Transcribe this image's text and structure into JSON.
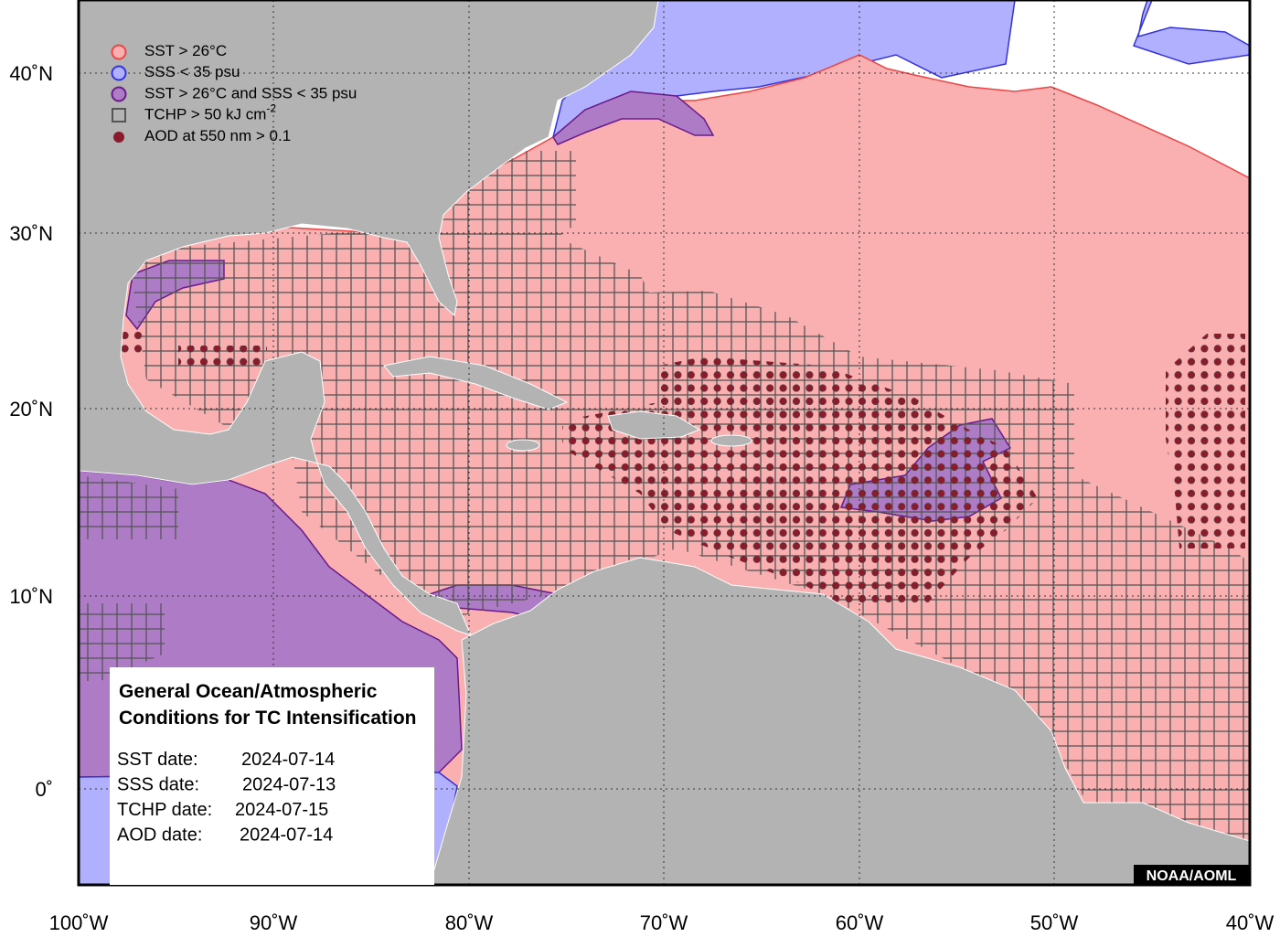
{
  "map": {
    "legend": [
      {
        "label": "SST > 26°C"
      },
      {
        "label": "SSS < 35 psu"
      },
      {
        "label": "SST > 26°C and SSS < 35 psu"
      },
      {
        "label": "TCHP > 50 kJ cm",
        "superscript": "-2"
      },
      {
        "label": "AOD at 550 nm > 0.1"
      }
    ],
    "x_axis_labels": [
      "100˚W",
      "90˚W",
      "80˚W",
      "70˚W",
      "60˚W",
      "50˚W",
      "40˚W"
    ],
    "y_axis_labels": [
      "40˚N",
      "30˚N",
      "20˚N",
      "10˚N",
      "0˚"
    ],
    "info_box": {
      "title": [
        "General Ocean/Atmospheric",
        "Conditions for TC Intensification"
      ],
      "dates": [
        {
          "label": "SST date:",
          "value": "2024-07-14"
        },
        {
          "label": "SSS date:",
          "value": "2024-07-13"
        },
        {
          "label": "TCHP date:",
          "value": "2024-07-15"
        },
        {
          "label": "AOD date:",
          "value": "2024-07-14"
        }
      ]
    },
    "credit": "NOAA/AOML"
  }
}
